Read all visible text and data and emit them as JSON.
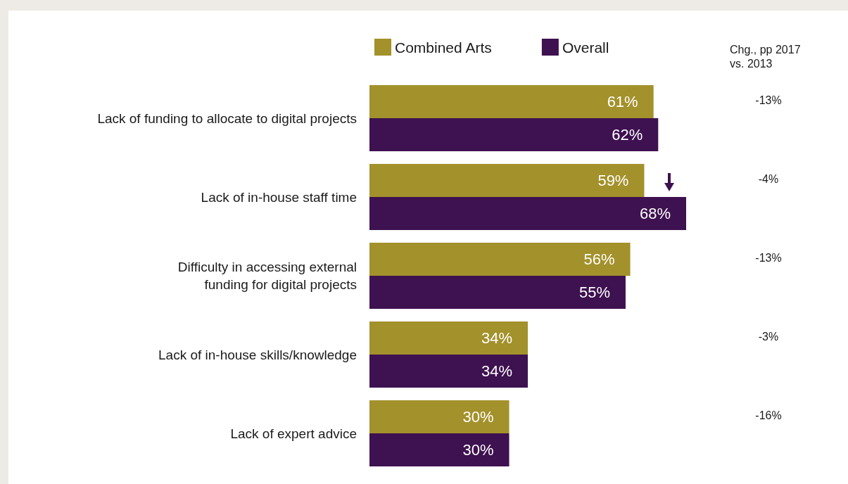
{
  "chart_data": {
    "type": "bar",
    "orientation": "horizontal",
    "categories": [
      "Lack of funding to allocate to digital projects",
      "Lack of in-house staff time",
      "Difficulty in accessing external\nfunding for digital projects",
      "Lack of in-house skills/knowledge",
      "Lack of expert advice"
    ],
    "series": [
      {
        "name": "Combined Arts",
        "color": "#a3912b",
        "values": [
          61,
          59,
          56,
          34,
          30
        ],
        "value_labels": [
          "61%",
          "59%",
          "56%",
          "34%",
          "30%"
        ]
      },
      {
        "name": "Overall",
        "color": "#3e1150",
        "values": [
          62,
          68,
          55,
          34,
          30
        ],
        "value_labels": [
          "62%",
          "68%",
          "55%",
          "34%",
          "30%"
        ]
      }
    ],
    "tick_labels": "y",
    "legend": "top",
    "annotations": [
      "Chg., pp 2017\nvs. 2013",
      "-13%",
      "-4%",
      "-13%",
      "-3%",
      "-16%"
    ]
  }
}
